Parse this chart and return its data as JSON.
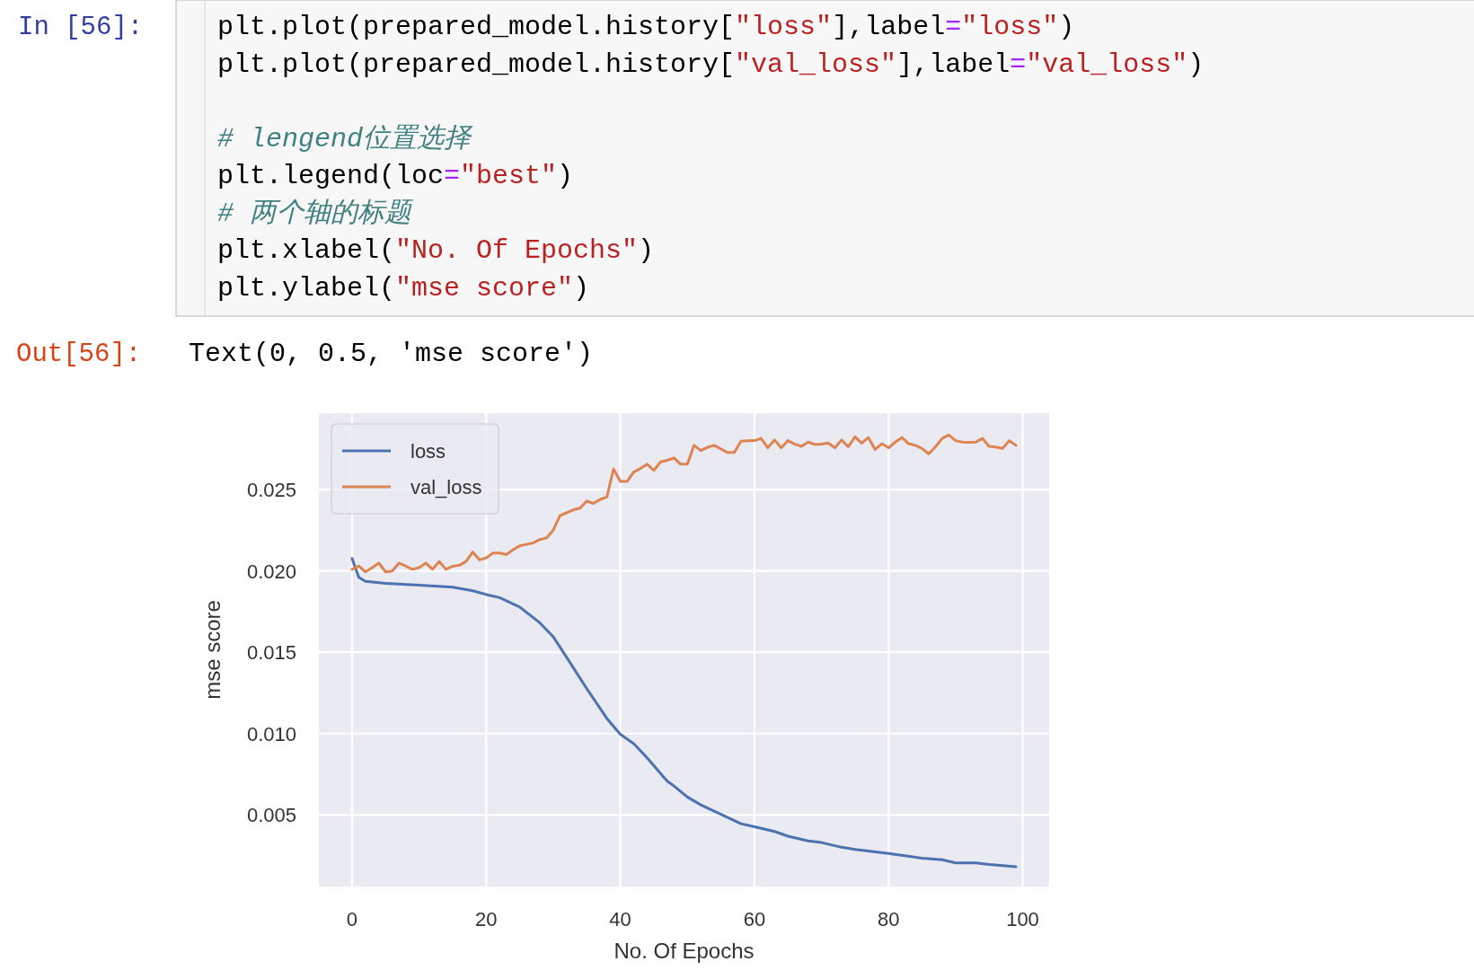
{
  "chart_data": {
    "type": "line",
    "xlabel": "No. Of Epochs",
    "ylabel": "mse score",
    "annotations": [
      "In [56]:",
      "plt.plot(prepared_model.history[\"loss\"],label=\"loss\")\nplt.plot(prepared_model.history[\"val_loss\"],label=\"val_loss\")\n\n# lengend位置选择\nplt.legend(loc=\"best\")\n# 两个轴的标题\nplt.xlabel(\"No. Of Epochs\")\nplt.ylabel(\"mse score\")",
      "Out[56]:",
      "Text(0, 0.5, 'mse score')"
    ],
    "xlim": [
      -4.95,
      103.95
    ],
    "ylim": [
      0.0006,
      0.0297
    ],
    "xticks": [
      0,
      20,
      40,
      60,
      80,
      100
    ],
    "yticks": [
      0.005,
      {
        "value": 0.01,
        "label": "0.010"
      },
      0.015,
      {
        "value": 0.02,
        "label": "0.020"
      },
      0.025
    ],
    "grid": true,
    "legend": "top left",
    "line_style": "solid",
    "marker": "none",
    "series": [
      {
        "name": "loss",
        "color": "#4c72b0",
        "x": [
          0,
          1,
          2,
          5,
          10,
          15,
          18,
          20,
          22,
          25,
          28,
          30,
          32,
          35,
          38,
          40,
          42,
          44,
          45,
          47,
          48,
          50,
          52,
          55,
          58,
          60,
          63,
          65,
          68,
          70,
          73,
          75,
          80,
          85,
          88,
          90,
          93,
          95,
          99
        ],
        "values": [
          0.02077,
          0.01961,
          0.01936,
          0.01923,
          0.01913,
          0.019,
          0.01878,
          0.01855,
          0.01836,
          0.01778,
          0.01681,
          0.01595,
          0.01469,
          0.01276,
          0.01093,
          0.00996,
          0.00938,
          0.00851,
          0.00803,
          0.00707,
          0.00678,
          0.0061,
          0.00562,
          0.00504,
          0.00446,
          0.00427,
          0.00398,
          0.00369,
          0.0034,
          0.0033,
          0.00301,
          0.00288,
          0.00263,
          0.00234,
          0.00224,
          0.00205,
          0.00205,
          0.00195,
          0.00181
        ]
      },
      {
        "name": "val_loss",
        "color": "#dd8452",
        "x": [
          0,
          1,
          2,
          3,
          4,
          5,
          6,
          7,
          8,
          9,
          10,
          11,
          12,
          13,
          14,
          15,
          16,
          17,
          18,
          19,
          20,
          21,
          22,
          23,
          24,
          25,
          26,
          27,
          28,
          29,
          30,
          31,
          32,
          33,
          34,
          35,
          36,
          37,
          38,
          39,
          40,
          41,
          42,
          43,
          44,
          45,
          46,
          47,
          48,
          49,
          50,
          51,
          52,
          53,
          54,
          55,
          56,
          57,
          58,
          59,
          60,
          61,
          62,
          63,
          64,
          65,
          66,
          67,
          68,
          69,
          70,
          71,
          72,
          73,
          74,
          75,
          76,
          77,
          78,
          79,
          80,
          81,
          82,
          83,
          84,
          85,
          86,
          87,
          88,
          89,
          90,
          91,
          92,
          93,
          94,
          95,
          96,
          97,
          98,
          99
        ],
        "values": [
          0.0201,
          0.0203,
          0.01994,
          0.0202,
          0.02048,
          0.01994,
          0.02,
          0.02048,
          0.0203,
          0.0201,
          0.0202,
          0.02048,
          0.0201,
          0.02058,
          0.0201,
          0.02029,
          0.02035,
          0.02058,
          0.02116,
          0.02068,
          0.0208,
          0.0211,
          0.0211,
          0.021,
          0.0213,
          0.02154,
          0.02163,
          0.02172,
          0.02193,
          0.02203,
          0.02251,
          0.0234,
          0.02357,
          0.02376,
          0.02386,
          0.0243,
          0.02415,
          0.0244,
          0.02454,
          0.02627,
          0.0255,
          0.0255,
          0.02608,
          0.0263,
          0.02656,
          0.02618,
          0.0267,
          0.0268,
          0.02695,
          0.02656,
          0.02656,
          0.02772,
          0.0274,
          0.0276,
          0.02772,
          0.0275,
          0.02728,
          0.02728,
          0.02797,
          0.028,
          0.02801,
          0.02815,
          0.02757,
          0.02805,
          0.02757,
          0.02801,
          0.0278,
          0.02766,
          0.02792,
          0.02778,
          0.0278,
          0.02786,
          0.02757,
          0.02805,
          0.02763,
          0.02824,
          0.02786,
          0.0282,
          0.02747,
          0.02782,
          0.02757,
          0.02792,
          0.0282,
          0.02782,
          0.02772,
          0.02753,
          0.0272,
          0.02763,
          0.02815,
          0.02836,
          0.02801,
          0.02792,
          0.0279,
          0.02792,
          0.02815,
          0.02766,
          0.02762,
          0.02753,
          0.02801,
          0.02772
        ]
      }
    ]
  }
}
